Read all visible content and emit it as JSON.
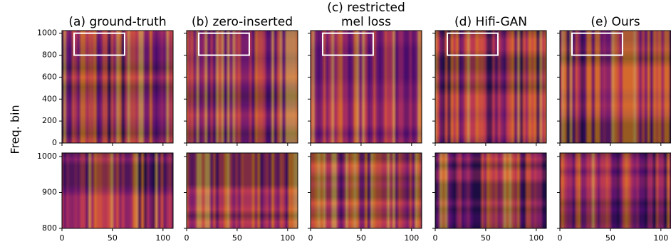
{
  "chart_data": {
    "type": "spectrogram",
    "ylabel": "Freq. bin",
    "panels": [
      {
        "title": [
          "(a) ground-truth"
        ]
      },
      {
        "title": [
          "(b) zero-inserted"
        ]
      },
      {
        "title": [
          "(c) restricted",
          "mel loss"
        ]
      },
      {
        "title": [
          "(d) Hifi-GAN"
        ]
      },
      {
        "title": [
          "(e) Ours"
        ]
      }
    ],
    "top": {
      "xlim": [
        0,
        110
      ],
      "ylim": [
        0,
        1024
      ],
      "xticks": [
        0,
        50,
        100
      ],
      "yticks": [
        0,
        200,
        400,
        600,
        800,
        1000
      ]
    },
    "zoom": {
      "xlim": [
        0,
        110
      ],
      "ylim": [
        800,
        1010
      ],
      "xticks": [
        0,
        50,
        100
      ],
      "yticks": [
        800,
        900,
        1000
      ]
    },
    "highlight": {
      "x": [
        12,
        62
      ],
      "y": [
        800,
        1000
      ],
      "color": "#ffffff"
    }
  }
}
